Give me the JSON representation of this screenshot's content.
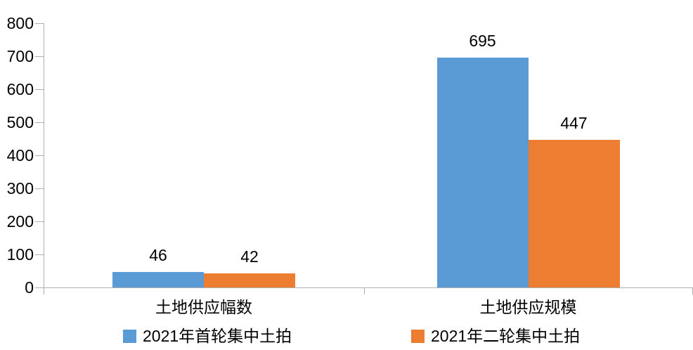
{
  "chart_data": {
    "type": "bar",
    "title": "",
    "xlabel": "",
    "ylabel": "",
    "categories": [
      "土地供应幅数",
      "土地供应规模"
    ],
    "series": [
      {
        "name": "2021年首轮集中土拍",
        "color": "#5B9BD5",
        "values": [
          46,
          695
        ]
      },
      {
        "name": "2021年二轮集中土拍",
        "color": "#ED7D31",
        "values": [
          42,
          447
        ]
      }
    ],
    "data_labels": [
      "46",
      "42",
      "695",
      "447"
    ],
    "ylim": [
      0,
      800
    ],
    "yticks": [
      0,
      100,
      200,
      300,
      400,
      500,
      600,
      700,
      800
    ],
    "grid": false,
    "legend_position": "bottom",
    "axis_color": "#B0B0B0",
    "text_color": "#000000",
    "background_color": "#FFFFFF"
  }
}
